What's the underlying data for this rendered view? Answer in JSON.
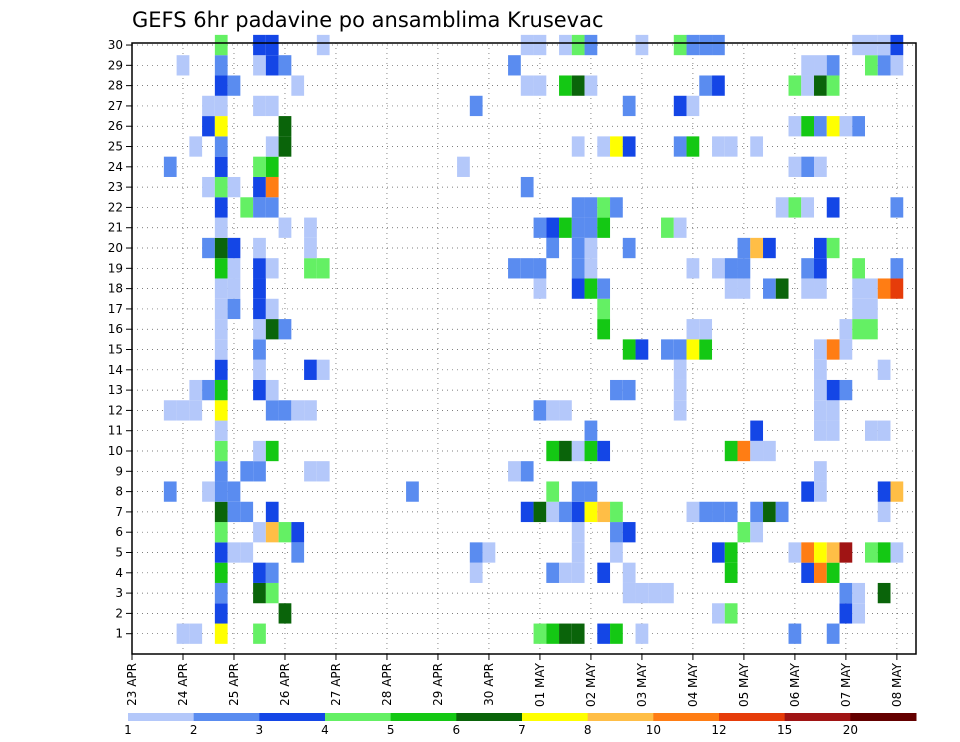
{
  "chart_data": {
    "type": "heatmap",
    "title": "GEFS 6hr padavine po ansamblima Krusevac",
    "xlabel": "",
    "ylabel": "",
    "x_tick_labels": [
      "23 APR",
      "24 APR",
      "25 APR",
      "26 APR",
      "27 APR",
      "28 APR",
      "29 APR",
      "30 APR",
      "01 MAY",
      "02 MAY",
      "03 MAY",
      "04 MAY",
      "05 MAY",
      "06 MAY",
      "07 MAY",
      "08 MAY"
    ],
    "y_tick_labels": [
      "1",
      "2",
      "3",
      "4",
      "5",
      "6",
      "7",
      "8",
      "9",
      "10",
      "11",
      "12",
      "13",
      "14",
      "15",
      "16",
      "17",
      "18",
      "19",
      "20",
      "21",
      "22",
      "23",
      "24",
      "25",
      "26",
      "27",
      "28",
      "29",
      "30"
    ],
    "x_range_steps": [
      0,
      61
    ],
    "steps_per_day": 4,
    "y_range_members": [
      1,
      30
    ],
    "grid": true,
    "colorbar": {
      "position": "bottom",
      "labels": [
        "1",
        "2",
        "3",
        "4",
        "5",
        "6",
        "7",
        "8",
        "10",
        "12",
        "15",
        "20"
      ],
      "colors": [
        "#b4c8fa",
        "#5a8cf0",
        "#1446e6",
        "#64f064",
        "#14c814",
        "#0a640a",
        "#ffff00",
        "#ffbe46",
        "#ff7d14",
        "#e63c0a",
        "#a01414",
        "#640000"
      ]
    },
    "cells": [
      [
        4,
        1
      ],
      [
        5,
        1
      ],
      [
        7,
        1,
        7
      ],
      [
        10,
        1,
        4
      ],
      [
        32,
        1,
        4
      ],
      [
        33,
        1,
        5
      ],
      [
        34,
        1,
        6
      ],
      [
        35,
        1,
        6
      ],
      [
        37,
        1,
        3
      ],
      [
        38,
        1,
        5
      ],
      [
        40,
        1,
        1
      ],
      [
        52,
        1,
        2
      ],
      [
        55,
        1,
        2
      ],
      [
        7,
        2,
        3
      ],
      [
        12,
        2,
        6
      ],
      [
        46,
        2,
        1
      ],
      [
        47,
        2,
        4
      ],
      [
        56,
        2,
        3
      ],
      [
        57,
        2,
        1
      ],
      [
        7,
        3,
        2
      ],
      [
        10,
        3,
        6
      ],
      [
        11,
        3,
        4
      ],
      [
        39,
        3,
        1
      ],
      [
        40,
        3,
        1
      ],
      [
        41,
        3,
        1
      ],
      [
        42,
        3,
        1
      ],
      [
        56,
        3,
        2
      ],
      [
        57,
        3,
        1
      ],
      [
        59,
        3,
        6
      ],
      [
        7,
        4,
        5
      ],
      [
        10,
        4,
        3
      ],
      [
        11,
        4,
        2
      ],
      [
        27,
        4,
        1
      ],
      [
        33,
        4,
        2
      ],
      [
        34,
        4,
        1
      ],
      [
        35,
        4,
        1
      ],
      [
        37,
        4,
        3
      ],
      [
        39,
        4,
        1
      ],
      [
        47,
        4,
        5
      ],
      [
        53,
        4,
        3
      ],
      [
        54,
        4,
        9
      ],
      [
        55,
        4,
        5
      ],
      [
        7,
        5,
        3
      ],
      [
        8,
        5,
        1
      ],
      [
        9,
        5,
        1
      ],
      [
        13,
        5,
        2
      ],
      [
        27,
        5,
        2
      ],
      [
        28,
        5,
        1
      ],
      [
        35,
        5,
        1
      ],
      [
        38,
        5,
        1
      ],
      [
        46,
        5,
        3
      ],
      [
        47,
        5,
        5
      ],
      [
        52,
        5,
        1
      ],
      [
        53,
        5,
        9
      ],
      [
        54,
        5,
        7
      ],
      [
        55,
        5,
        8
      ],
      [
        56,
        5,
        11
      ],
      [
        58,
        5,
        4
      ],
      [
        59,
        5,
        5
      ],
      [
        60,
        5,
        1
      ],
      [
        7,
        6,
        4
      ],
      [
        10,
        6,
        1
      ],
      [
        11,
        6,
        8
      ],
      [
        12,
        6,
        4
      ],
      [
        13,
        6,
        3
      ],
      [
        35,
        6,
        1
      ],
      [
        38,
        6,
        2
      ],
      [
        39,
        6,
        3
      ],
      [
        48,
        6,
        4
      ],
      [
        49,
        6,
        1
      ],
      [
        7,
        7,
        6
      ],
      [
        8,
        7,
        2
      ],
      [
        9,
        7,
        2
      ],
      [
        11,
        7,
        3
      ],
      [
        31,
        7,
        3
      ],
      [
        32,
        7,
        6
      ],
      [
        33,
        7,
        1
      ],
      [
        34,
        7,
        2
      ],
      [
        35,
        7,
        3
      ],
      [
        36,
        7,
        7
      ],
      [
        37,
        7,
        8
      ],
      [
        38,
        7,
        4
      ],
      [
        44,
        7,
        1
      ],
      [
        45,
        7,
        2
      ],
      [
        46,
        7,
        2
      ],
      [
        47,
        7,
        2
      ],
      [
        49,
        7,
        2
      ],
      [
        50,
        7,
        6
      ],
      [
        51,
        7,
        2
      ],
      [
        59,
        7,
        1
      ],
      [
        3,
        8,
        2
      ],
      [
        6,
        8,
        1
      ],
      [
        7,
        8,
        2
      ],
      [
        8,
        8,
        2
      ],
      [
        22,
        8,
        2
      ],
      [
        33,
        8,
        4
      ],
      [
        35,
        8,
        2
      ],
      [
        36,
        8,
        2
      ],
      [
        53,
        8,
        3
      ],
      [
        54,
        8,
        1
      ],
      [
        59,
        8,
        3
      ],
      [
        60,
        8,
        8
      ],
      [
        7,
        9,
        2
      ],
      [
        9,
        9,
        2
      ],
      [
        10,
        9,
        2
      ],
      [
        14,
        9,
        1
      ],
      [
        15,
        9,
        1
      ],
      [
        30,
        9,
        1
      ],
      [
        31,
        9,
        2
      ],
      [
        54,
        9,
        1
      ],
      [
        7,
        10,
        4
      ],
      [
        10,
        10,
        1
      ],
      [
        11,
        10,
        5
      ],
      [
        33,
        10,
        5
      ],
      [
        34,
        10,
        6
      ],
      [
        35,
        10,
        1
      ],
      [
        36,
        10,
        5
      ],
      [
        37,
        10,
        3
      ],
      [
        47,
        10,
        5
      ],
      [
        48,
        10,
        9
      ],
      [
        49,
        10,
        1
      ],
      [
        50,
        10,
        1
      ],
      [
        7,
        11,
        1
      ],
      [
        36,
        11,
        2
      ],
      [
        49,
        11,
        3
      ],
      [
        54,
        11,
        1
      ],
      [
        55,
        11,
        1
      ],
      [
        58,
        11,
        1
      ],
      [
        59,
        11,
        1
      ],
      [
        3,
        12,
        1
      ],
      [
        4,
        12,
        1
      ],
      [
        5,
        12,
        1
      ],
      [
        7,
        12,
        7
      ],
      [
        11,
        12,
        2
      ],
      [
        12,
        12,
        2
      ],
      [
        13,
        12,
        1
      ],
      [
        14,
        12,
        1
      ],
      [
        32,
        12,
        2
      ],
      [
        33,
        12,
        1
      ],
      [
        34,
        12,
        1
      ],
      [
        43,
        12,
        1
      ],
      [
        54,
        12,
        1
      ],
      [
        55,
        12,
        1
      ],
      [
        5,
        13,
        1
      ],
      [
        6,
        13,
        2
      ],
      [
        7,
        13,
        5
      ],
      [
        10,
        13,
        3
      ],
      [
        11,
        13,
        1
      ],
      [
        38,
        13,
        2
      ],
      [
        39,
        13,
        2
      ],
      [
        43,
        13,
        1
      ],
      [
        54,
        13,
        1
      ],
      [
        55,
        13,
        3
      ],
      [
        56,
        13,
        2
      ],
      [
        7,
        14,
        3
      ],
      [
        10,
        14,
        1
      ],
      [
        14,
        14,
        3
      ],
      [
        15,
        14,
        1
      ],
      [
        43,
        14,
        1
      ],
      [
        54,
        14,
        1
      ],
      [
        59,
        14,
        1
      ],
      [
        7,
        15,
        1
      ],
      [
        10,
        15,
        2
      ],
      [
        39,
        15,
        5
      ],
      [
        40,
        15,
        3
      ],
      [
        42,
        15,
        2
      ],
      [
        43,
        15,
        2
      ],
      [
        44,
        15,
        7
      ],
      [
        45,
        15,
        5
      ],
      [
        54,
        15,
        1
      ],
      [
        55,
        15,
        9
      ],
      [
        56,
        15,
        1
      ],
      [
        7,
        16,
        1
      ],
      [
        10,
        16,
        1
      ],
      [
        11,
        16,
        6
      ],
      [
        12,
        16,
        2
      ],
      [
        37,
        16,
        5
      ],
      [
        44,
        16,
        1
      ],
      [
        45,
        16,
        1
      ],
      [
        56,
        16,
        1
      ],
      [
        57,
        16,
        4
      ],
      [
        58,
        16,
        4
      ],
      [
        7,
        17,
        1
      ],
      [
        8,
        17,
        2
      ],
      [
        10,
        17,
        3
      ],
      [
        11,
        17,
        1
      ],
      [
        37,
        17,
        4
      ],
      [
        57,
        17,
        1
      ],
      [
        58,
        17,
        1
      ],
      [
        7,
        18,
        1
      ],
      [
        8,
        18,
        1
      ],
      [
        10,
        18,
        3
      ],
      [
        32,
        18,
        1
      ],
      [
        35,
        18,
        3
      ],
      [
        36,
        18,
        5
      ],
      [
        37,
        18,
        2
      ],
      [
        47,
        18,
        1
      ],
      [
        48,
        18,
        1
      ],
      [
        50,
        18,
        2
      ],
      [
        51,
        18,
        6
      ],
      [
        53,
        18,
        1
      ],
      [
        54,
        18,
        1
      ],
      [
        57,
        18,
        1
      ],
      [
        58,
        18,
        1
      ],
      [
        59,
        18,
        9
      ],
      [
        60,
        18,
        10
      ],
      [
        7,
        19,
        5
      ],
      [
        8,
        19,
        1
      ],
      [
        10,
        19,
        3
      ],
      [
        11,
        19,
        1
      ],
      [
        14,
        19,
        4
      ],
      [
        15,
        19,
        4
      ],
      [
        30,
        19,
        2
      ],
      [
        31,
        19,
        2
      ],
      [
        32,
        19,
        2
      ],
      [
        35,
        19,
        2
      ],
      [
        36,
        19,
        1
      ],
      [
        44,
        19,
        1
      ],
      [
        46,
        19,
        1
      ],
      [
        47,
        19,
        2
      ],
      [
        48,
        19,
        2
      ],
      [
        53,
        19,
        2
      ],
      [
        54,
        19,
        3
      ],
      [
        57,
        19,
        4
      ],
      [
        60,
        19,
        2
      ],
      [
        6,
        20,
        2
      ],
      [
        7,
        20,
        6
      ],
      [
        8,
        20,
        3
      ],
      [
        10,
        20,
        1
      ],
      [
        14,
        20,
        1
      ],
      [
        33,
        20,
        2
      ],
      [
        35,
        20,
        2
      ],
      [
        36,
        20,
        1
      ],
      [
        39,
        20,
        2
      ],
      [
        48,
        20,
        2
      ],
      [
        49,
        20,
        8
      ],
      [
        50,
        20,
        3
      ],
      [
        54,
        20,
        3
      ],
      [
        55,
        20,
        4
      ],
      [
        7,
        21,
        1
      ],
      [
        12,
        21,
        1
      ],
      [
        14,
        21,
        1
      ],
      [
        32,
        21,
        2
      ],
      [
        33,
        21,
        3
      ],
      [
        34,
        21,
        5
      ],
      [
        35,
        21,
        2
      ],
      [
        36,
        21,
        2
      ],
      [
        37,
        21,
        5
      ],
      [
        42,
        21,
        4
      ],
      [
        43,
        21,
        1
      ],
      [
        7,
        22,
        3
      ],
      [
        9,
        22,
        4
      ],
      [
        10,
        22,
        2
      ],
      [
        11,
        22,
        2
      ],
      [
        35,
        22,
        2
      ],
      [
        36,
        22,
        2
      ],
      [
        37,
        22,
        4
      ],
      [
        38,
        22,
        2
      ],
      [
        51,
        22,
        1
      ],
      [
        52,
        22,
        4
      ],
      [
        53,
        22,
        1
      ],
      [
        55,
        22,
        3
      ],
      [
        60,
        22,
        2
      ],
      [
        6,
        23,
        1
      ],
      [
        7,
        23,
        4
      ],
      [
        8,
        23,
        1
      ],
      [
        10,
        23,
        3
      ],
      [
        11,
        23,
        9
      ],
      [
        31,
        23,
        2
      ],
      [
        3,
        24,
        2
      ],
      [
        7,
        24,
        3
      ],
      [
        10,
        24,
        4
      ],
      [
        11,
        24,
        5
      ],
      [
        26,
        24,
        1
      ],
      [
        52,
        24,
        1
      ],
      [
        53,
        24,
        2
      ],
      [
        54,
        24,
        1
      ],
      [
        5,
        25,
        1
      ],
      [
        7,
        25,
        2
      ],
      [
        11,
        25,
        1
      ],
      [
        12,
        25,
        6
      ],
      [
        35,
        25,
        1
      ],
      [
        37,
        25,
        1
      ],
      [
        38,
        25,
        7
      ],
      [
        39,
        25,
        3
      ],
      [
        43,
        25,
        2
      ],
      [
        44,
        25,
        5
      ],
      [
        46,
        25,
        1
      ],
      [
        47,
        25,
        1
      ],
      [
        49,
        25,
        1
      ],
      [
        6,
        26,
        3
      ],
      [
        7,
        26,
        7
      ],
      [
        12,
        26,
        6
      ],
      [
        52,
        26,
        1
      ],
      [
        53,
        26,
        5
      ],
      [
        54,
        26,
        2
      ],
      [
        55,
        26,
        7
      ],
      [
        56,
        26,
        1
      ],
      [
        57,
        26,
        2
      ],
      [
        6,
        27,
        1
      ],
      [
        7,
        27,
        1
      ],
      [
        10,
        27,
        1
      ],
      [
        11,
        27,
        1
      ],
      [
        27,
        27,
        2
      ],
      [
        39,
        27,
        2
      ],
      [
        43,
        27,
        3
      ],
      [
        44,
        27,
        1
      ],
      [
        7,
        28,
        3
      ],
      [
        8,
        28,
        2
      ],
      [
        13,
        28,
        1
      ],
      [
        31,
        28,
        1
      ],
      [
        32,
        28,
        1
      ],
      [
        34,
        28,
        5
      ],
      [
        35,
        28,
        6
      ],
      [
        36,
        28,
        1
      ],
      [
        45,
        28,
        2
      ],
      [
        46,
        28,
        3
      ],
      [
        52,
        28,
        4
      ],
      [
        53,
        28,
        1
      ],
      [
        54,
        28,
        6
      ],
      [
        55,
        28,
        4
      ],
      [
        4,
        29,
        1
      ],
      [
        7,
        29,
        2
      ],
      [
        10,
        29,
        1
      ],
      [
        11,
        29,
        3
      ],
      [
        12,
        29,
        2
      ],
      [
        30,
        29,
        2
      ],
      [
        53,
        29,
        1
      ],
      [
        54,
        29,
        1
      ],
      [
        55,
        29,
        2
      ],
      [
        58,
        29,
        4
      ],
      [
        59,
        29,
        2
      ],
      [
        60,
        29,
        1
      ],
      [
        7,
        30,
        4
      ],
      [
        10,
        30,
        3
      ],
      [
        11,
        30,
        3
      ],
      [
        15,
        30,
        1
      ],
      [
        31,
        30,
        1
      ],
      [
        32,
        30,
        1
      ],
      [
        34,
        30,
        1
      ],
      [
        35,
        30,
        4
      ],
      [
        36,
        30,
        2
      ],
      [
        40,
        30,
        1
      ],
      [
        43,
        30,
        4
      ],
      [
        44,
        30,
        2
      ],
      [
        45,
        30,
        2
      ],
      [
        46,
        30,
        2
      ],
      [
        57,
        30,
        1
      ],
      [
        58,
        30,
        1
      ],
      [
        59,
        30,
        1
      ],
      [
        60,
        30,
        3
      ]
    ],
    "cells_format": "[time_step, member, color_index] ; time_step 0 = 23 APR 00z, 4 steps per day; color_index 1-12 maps to colorbar classes; default index 1 if omitted"
  }
}
